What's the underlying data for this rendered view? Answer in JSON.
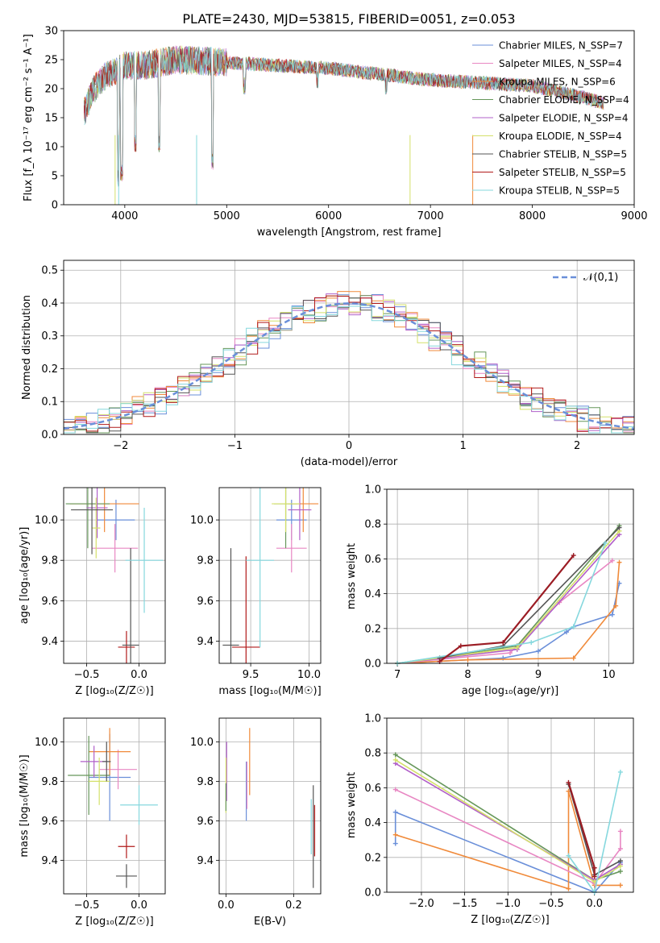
{
  "figure": {
    "title": "PLATE=2430, MJD=53815, FIBERID=0051, z=0.053"
  },
  "series_colors": [
    "#6a8fd9",
    "#e887c3",
    "#f08a3a",
    "#66975a",
    "#b160c9",
    "#d4e06a",
    "#555555",
    "#b11a1a",
    "#86d8de"
  ],
  "chart_data": [
    {
      "type": "line",
      "panel": "spectrum",
      "xlabel": "wavelength [Angstrom, rest frame]",
      "ylabel": "Flux [f_λ 10⁻¹⁷ erg cm⁻² s⁻¹ A⁻¹]",
      "xlim": [
        3400,
        9000
      ],
      "ylim": [
        0,
        30
      ],
      "xticks": [
        4000,
        5000,
        6000,
        7000,
        8000,
        9000
      ],
      "yticks": [
        0,
        5,
        10,
        15,
        20,
        25,
        30
      ],
      "legend_position": "top-right",
      "legend": [
        {
          "name": "Chabrier MILES, N_SSP=7",
          "color": "#6a8fd9"
        },
        {
          "name": "Salpeter MILES, N_SSP=4",
          "color": "#e887c3"
        },
        {
          "name": "Kroupa MILES, N_SSP=6",
          "color": "#f08a3a"
        },
        {
          "name": "Chabrier ELODIE, N_SSP=4",
          "color": "#66975a"
        },
        {
          "name": "Salpeter ELODIE, N_SSP=4",
          "color": "#b160c9"
        },
        {
          "name": "Kroupa ELODIE, N_SSP=4",
          "color": "#d4e06a"
        },
        {
          "name": "Chabrier STELIB, N_SSP=5",
          "color": "#555555"
        },
        {
          "name": "Salpeter STELIB, N_SSP=5",
          "color": "#b11a1a"
        },
        {
          "name": "Kroupa STELIB, N_SSP=5",
          "color": "#86d8de"
        }
      ],
      "continuum": [
        [
          3600,
          16
        ],
        [
          3700,
          20
        ],
        [
          3800,
          22
        ],
        [
          4000,
          24
        ],
        [
          4200,
          24
        ],
        [
          4500,
          25
        ],
        [
          5000,
          24.5
        ],
        [
          5500,
          24
        ],
        [
          6000,
          23.5
        ],
        [
          6500,
          22.5
        ],
        [
          7000,
          21.5
        ],
        [
          7500,
          21
        ],
        [
          8000,
          20.5
        ],
        [
          8500,
          18.5
        ],
        [
          8700,
          17.5
        ]
      ]
    },
    {
      "type": "step",
      "panel": "residuals",
      "xlabel": "(data-model)/error",
      "ylabel": "Normed distribution",
      "xlim": [
        -2.5,
        2.5
      ],
      "ylim": [
        0,
        0.53
      ],
      "xticks": [
        -2,
        -1,
        0,
        1,
        2
      ],
      "yticks": [
        0.0,
        0.1,
        0.2,
        0.3,
        0.4,
        0.5
      ],
      "grid": true,
      "legend": [
        {
          "name": "𝒩(0,1)",
          "color": "#6a8fd9",
          "style": "dashed"
        }
      ],
      "bin_width": 0.1,
      "curve": "normal(0,1)"
    },
    {
      "type": "errorbar",
      "panel": "age_vs_Z",
      "xlabel": "Z [log₁₀(Z/Z☉)]",
      "ylabel": "age  [log₁₀(age/yr)]",
      "xlim": [
        -0.72,
        0.25
      ],
      "ylim": [
        9.29,
        10.16
      ],
      "xticks": [
        -0.5,
        0.0
      ],
      "yticks": [
        9.4,
        9.6,
        9.8,
        10.0
      ],
      "points": [
        {
          "x": -0.22,
          "y": 10.0,
          "xerr": 0.18,
          "yerr": 0.1,
          "color": "#6a8fd9"
        },
        {
          "x": -0.23,
          "y": 9.86,
          "xerr": 0.22,
          "yerr": 0.12,
          "color": "#e887c3"
        },
        {
          "x": -0.33,
          "y": 10.08,
          "xerr": 0.33,
          "yerr": 0.14,
          "color": "#f08a3a"
        },
        {
          "x": -0.49,
          "y": 10.08,
          "xerr": 0.21,
          "yerr": 0.22,
          "color": "#66975a"
        },
        {
          "x": -0.4,
          "y": 10.06,
          "xerr": 0.1,
          "yerr": 0.15,
          "color": "#b160c9"
        },
        {
          "x": -0.41,
          "y": 9.96,
          "xerr": 0.04,
          "yerr": 0.15,
          "color": "#d4e06a"
        },
        {
          "x": -0.45,
          "y": 10.05,
          "xerr": 0.2,
          "yerr": 0.22,
          "color": "#555555"
        },
        {
          "x": -0.12,
          "y": 9.37,
          "xerr": 0.08,
          "yerr": 0.08,
          "color": "#b11a1a"
        },
        {
          "x": -0.08,
          "y": 9.38,
          "xerr": 0.08,
          "yerr": 0.48,
          "color": "#555555"
        },
        {
          "x": 0.05,
          "y": 9.8,
          "xerr": 0.18,
          "yerr": 0.26,
          "color": "#86d8de"
        }
      ]
    },
    {
      "type": "errorbar",
      "panel": "age_vs_mass",
      "xlabel": "mass [log₁₀(M/M☉)]",
      "ylabel": "",
      "xlim": [
        9.23,
        10.1
      ],
      "ylim": [
        9.29,
        10.16
      ],
      "xticks": [
        9.5,
        10.0
      ],
      "yticks": [
        9.4,
        9.6,
        9.8,
        10.0
      ],
      "points": [
        {
          "x": 9.85,
          "y": 10.0,
          "xerr": 0.13,
          "yerr": 0.1,
          "color": "#6a8fd9"
        },
        {
          "x": 9.85,
          "y": 9.86,
          "xerr": 0.13,
          "yerr": 0.12,
          "color": "#e887c3"
        },
        {
          "x": 9.95,
          "y": 10.08,
          "xerr": 0.13,
          "yerr": 0.14,
          "color": "#f08a3a"
        },
        {
          "x": 9.8,
          "y": 10.08,
          "xerr": 0.1,
          "yerr": 0.22,
          "color": "#66975a"
        },
        {
          "x": 9.92,
          "y": 10.05,
          "xerr": 0.1,
          "yerr": 0.15,
          "color": "#b160c9"
        },
        {
          "x": 9.8,
          "y": 10.08,
          "xerr": 0.12,
          "yerr": 0.14,
          "color": "#d4e06a"
        },
        {
          "x": 9.33,
          "y": 9.38,
          "xerr": 0.07,
          "yerr": 0.48,
          "color": "#555555"
        },
        {
          "x": 9.46,
          "y": 9.37,
          "xerr": 0.12,
          "yerr": 0.45,
          "color": "#b11a1a"
        },
        {
          "x": 9.58,
          "y": 9.8,
          "xerr": 0.12,
          "yerr": 0.43,
          "color": "#86d8de"
        }
      ]
    },
    {
      "type": "line",
      "panel": "massweight_vs_age",
      "xlabel": "age  [log₁₀(age/yr)]",
      "ylabel": "mass weight",
      "xlim": [
        6.85,
        10.35
      ],
      "ylim": [
        0,
        1.0
      ],
      "xticks": [
        7,
        8,
        9,
        10
      ],
      "yticks": [
        0.0,
        0.2,
        0.4,
        0.6,
        0.8,
        1.0
      ],
      "grid": true,
      "series": [
        {
          "color": "#6a8fd9",
          "x": [
            7.0,
            8.5,
            9.0,
            9.4,
            9.5,
            10.05,
            10.15
          ],
          "y": [
            0.0,
            0.03,
            0.07,
            0.18,
            0.21,
            0.28,
            0.46
          ]
        },
        {
          "color": "#f08a3a",
          "x": [
            7.0,
            8.0,
            9.5,
            10.1,
            10.15
          ],
          "y": [
            0.0,
            0.02,
            0.03,
            0.33,
            0.58
          ]
        },
        {
          "color": "#e887c3",
          "x": [
            7.0,
            8.6,
            9.3,
            10.05
          ],
          "y": [
            0.0,
            0.06,
            0.35,
            0.59
          ]
        },
        {
          "color": "#66975a",
          "x": [
            7.0,
            8.7,
            10.15
          ],
          "y": [
            0.0,
            0.1,
            0.79
          ]
        },
        {
          "color": "#b160c9",
          "x": [
            7.0,
            8.7,
            10.15
          ],
          "y": [
            0.0,
            0.08,
            0.74
          ]
        },
        {
          "color": "#d4e06a",
          "x": [
            7.0,
            8.7,
            10.15
          ],
          "y": [
            0.0,
            0.09,
            0.76
          ]
        },
        {
          "color": "#555555",
          "x": [
            7.6,
            8.5,
            10.15
          ],
          "y": [
            0.03,
            0.1,
            0.78
          ]
        },
        {
          "color": "#86d8de",
          "x": [
            7.0,
            8.9,
            9.5,
            9.95
          ],
          "y": [
            0.0,
            0.12,
            0.21,
            0.69
          ]
        },
        {
          "color": "#9b1c24",
          "x": [
            7.6,
            7.9,
            8.5,
            9.5
          ],
          "y": [
            0.01,
            0.1,
            0.12,
            0.62
          ]
        }
      ]
    },
    {
      "type": "errorbar",
      "panel": "mass_vs_Z",
      "xlabel": "Z [log₁₀(Z/Z☉)]",
      "ylabel": "mass [log₁₀(M/M☉)]",
      "xlim": [
        -0.72,
        0.25
      ],
      "ylim": [
        9.23,
        10.12
      ],
      "xticks": [
        -0.5,
        0.0
      ],
      "yticks": [
        9.4,
        9.6,
        9.8,
        10.0
      ],
      "points": [
        {
          "x": -0.28,
          "y": 9.82,
          "xerr": 0.2,
          "yerr": 0.22,
          "color": "#6a8fd9"
        },
        {
          "x": -0.2,
          "y": 9.86,
          "xerr": 0.18,
          "yerr": 0.1,
          "color": "#e887c3"
        },
        {
          "x": -0.28,
          "y": 9.95,
          "xerr": 0.2,
          "yerr": 0.12,
          "color": "#f08a3a"
        },
        {
          "x": -0.48,
          "y": 9.83,
          "xerr": 0.2,
          "yerr": 0.2,
          "color": "#66975a"
        },
        {
          "x": -0.43,
          "y": 9.9,
          "xerr": 0.13,
          "yerr": 0.08,
          "color": "#b160c9"
        },
        {
          "x": -0.38,
          "y": 9.8,
          "xerr": 0.1,
          "yerr": 0.12,
          "color": "#d4e06a"
        },
        {
          "x": -0.31,
          "y": 9.9,
          "xerr": 0.04,
          "yerr": 0.1,
          "color": "#555555"
        },
        {
          "x": -0.12,
          "y": 9.47,
          "xerr": 0.08,
          "yerr": 0.06,
          "color": "#b11a1a"
        },
        {
          "x": -0.12,
          "y": 9.32,
          "xerr": 0.1,
          "yerr": 0.06,
          "color": "#555555"
        },
        {
          "x": 0.0,
          "y": 9.68,
          "xerr": 0.18,
          "yerr": 0.1,
          "color": "#86d8de"
        }
      ]
    },
    {
      "type": "errorbar",
      "panel": "mass_vs_ebv",
      "xlabel": "E(B-V)",
      "ylabel": "",
      "xlim": [
        -0.02,
        0.28
      ],
      "ylim": [
        9.23,
        10.12
      ],
      "xticks": [
        0.0,
        0.2
      ],
      "yticks": [
        9.4,
        9.6,
        9.8,
        10.0
      ],
      "points": [
        {
          "x": 0.06,
          "y": 9.75,
          "yerr": 0.15,
          "color": "#6a8fd9"
        },
        {
          "x": 0.002,
          "y": 9.85,
          "yerr": 0.15,
          "color": "#b160c9"
        },
        {
          "x": 0.07,
          "y": 9.9,
          "yerr": 0.17,
          "color": "#f08a3a"
        },
        {
          "x": 0.062,
          "y": 9.78,
          "yerr": 0.12,
          "color": "#e887c3"
        },
        {
          "x": 0.0,
          "y": 9.78,
          "yerr": 0.14,
          "color": "#d4e06a"
        },
        {
          "x": 0.0,
          "y": 9.72,
          "yerr": 0.07,
          "color": "#66975a"
        },
        {
          "x": 0.258,
          "y": 9.52,
          "yerr": 0.26,
          "color": "#555555"
        },
        {
          "x": 0.262,
          "y": 9.55,
          "yerr": 0.13,
          "color": "#b11a1a"
        },
        {
          "x": 0.252,
          "y": 9.57,
          "yerr": 0.14,
          "color": "#86d8de"
        }
      ]
    },
    {
      "type": "line",
      "panel": "massweight_vs_Z",
      "xlabel": "Z [log₁₀(Z/Z☉)]",
      "ylabel": "mass weight",
      "xlim": [
        -2.4,
        0.45
      ],
      "ylim": [
        0,
        1.0
      ],
      "xticks": [
        -2.0,
        -1.5,
        -1.0,
        -0.5,
        0.0
      ],
      "yticks": [
        0.0,
        0.2,
        0.4,
        0.6,
        0.8,
        1.0
      ],
      "grid": true,
      "series": [
        {
          "color": "#6a8fd9",
          "x": [
            -2.3,
            -2.3,
            0.0,
            0.3
          ],
          "y": [
            0.28,
            0.46,
            0.0,
            0.17
          ]
        },
        {
          "color": "#f08a3a",
          "x": [
            -2.3,
            -0.3,
            -0.3,
            0.0,
            0.3
          ],
          "y": [
            0.33,
            0.02,
            0.58,
            0.04,
            0.04
          ]
        },
        {
          "color": "#e887c3",
          "x": [
            -2.3,
            0.0,
            0.3,
            0.3
          ],
          "y": [
            0.59,
            0.05,
            0.25,
            0.35
          ]
        },
        {
          "color": "#66975a",
          "x": [
            -2.3,
            0.0,
            0.3
          ],
          "y": [
            0.79,
            0.07,
            0.12
          ]
        },
        {
          "color": "#b160c9",
          "x": [
            -2.3,
            0.0,
            0.3
          ],
          "y": [
            0.74,
            0.07,
            0.16
          ]
        },
        {
          "color": "#d4e06a",
          "x": [
            -2.3,
            0.0,
            0.3
          ],
          "y": [
            0.76,
            0.06,
            0.15
          ]
        },
        {
          "color": "#555555",
          "x": [
            -0.3,
            0.0,
            0.3
          ],
          "y": [
            0.62,
            0.1,
            0.18
          ]
        },
        {
          "color": "#86d8de",
          "x": [
            -0.3,
            0.0,
            0.3
          ],
          "y": [
            0.21,
            0.0,
            0.69
          ]
        },
        {
          "color": "#9b1c24",
          "x": [
            -0.3,
            0.0,
            0.0
          ],
          "y": [
            0.63,
            0.14,
            0.09
          ]
        }
      ]
    }
  ]
}
